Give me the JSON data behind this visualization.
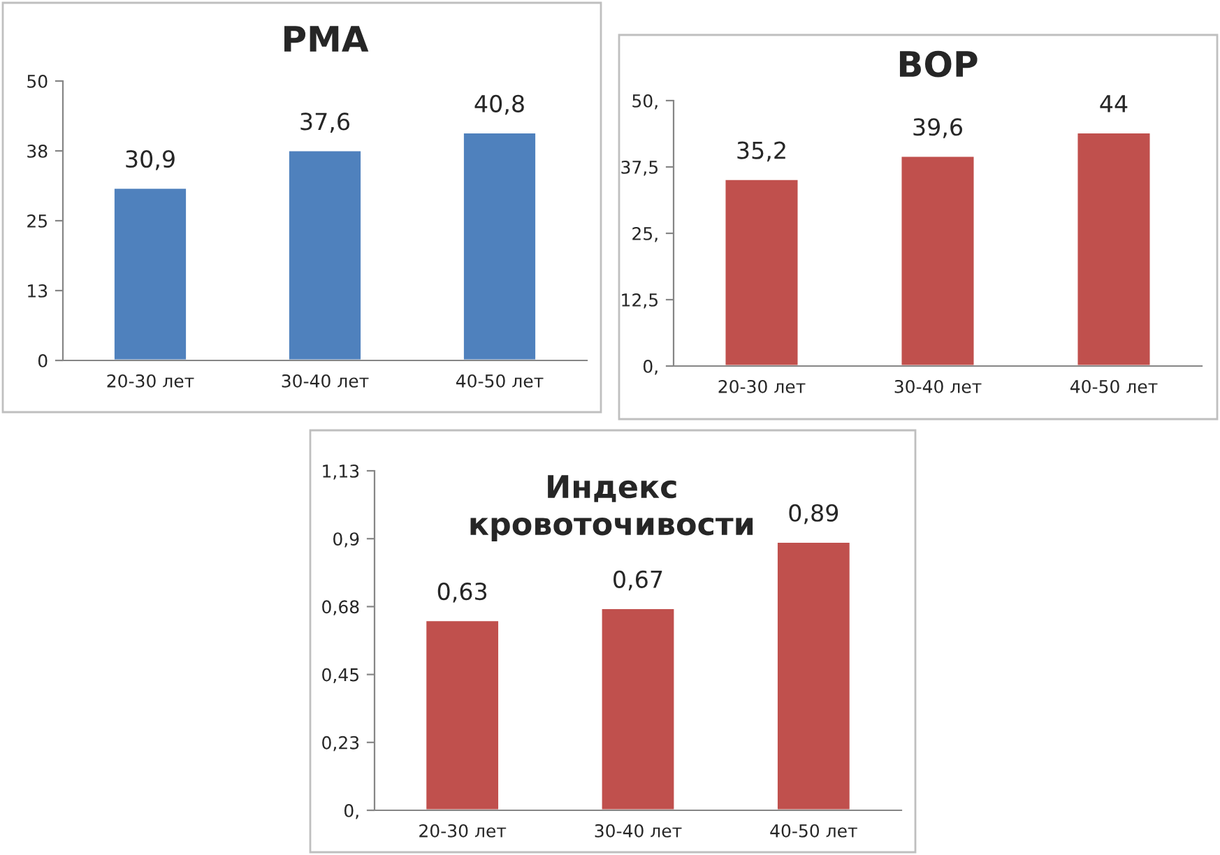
{
  "chart_data": [
    {
      "type": "bar",
      "title": "РМА",
      "categories": [
        "20-30 лет",
        "30-40 лет",
        "40-50 лет"
      ],
      "values": [
        30.9,
        37.6,
        40.8
      ],
      "value_labels": [
        "30,9",
        "37,6",
        "40,8"
      ],
      "color": "#4f81bd",
      "ylim": [
        0,
        50
      ],
      "yticks": [
        0,
        {
          "value": 12.5,
          "label": "13"
        },
        25,
        {
          "value": 37.5,
          "label": "38"
        },
        50
      ],
      "grid": false
    },
    {
      "type": "bar",
      "title": "ВОР",
      "categories": [
        "20-30 лет",
        "30-40 лет",
        "40-50 лет"
      ],
      "values": [
        35.2,
        39.6,
        44
      ],
      "value_labels": [
        "35,2",
        "39,6",
        "44"
      ],
      "color": "#c0504d",
      "ylim": [
        0,
        50
      ],
      "yticks": [
        {
          "value": 0,
          "label": "0,"
        },
        {
          "value": 12.5,
          "label": "12,5"
        },
        {
          "value": 25,
          "label": "25,"
        },
        {
          "value": 37.5,
          "label": "37,5"
        },
        {
          "value": 50,
          "label": "50,"
        }
      ],
      "grid": false
    },
    {
      "type": "bar",
      "title": "Индекс кровоточивости",
      "categories": [
        "20-30 лет",
        "30-40 лет",
        "40-50 лет"
      ],
      "values": [
        0.63,
        0.67,
        0.89
      ],
      "value_labels": [
        "0,63",
        "0,67",
        "0,89"
      ],
      "color": "#c0504d",
      "ylim": [
        0,
        1.125
      ],
      "yticks": [
        {
          "value": 0,
          "label": "0,"
        },
        {
          "value": 0.225,
          "label": "0,23"
        },
        {
          "value": 0.45,
          "label": "0,45"
        },
        {
          "value": 0.675,
          "label": "0,68"
        },
        {
          "value": 0.9,
          "label": "0,9"
        },
        {
          "value": 1.125,
          "label": "1,13"
        }
      ],
      "grid": false
    }
  ]
}
